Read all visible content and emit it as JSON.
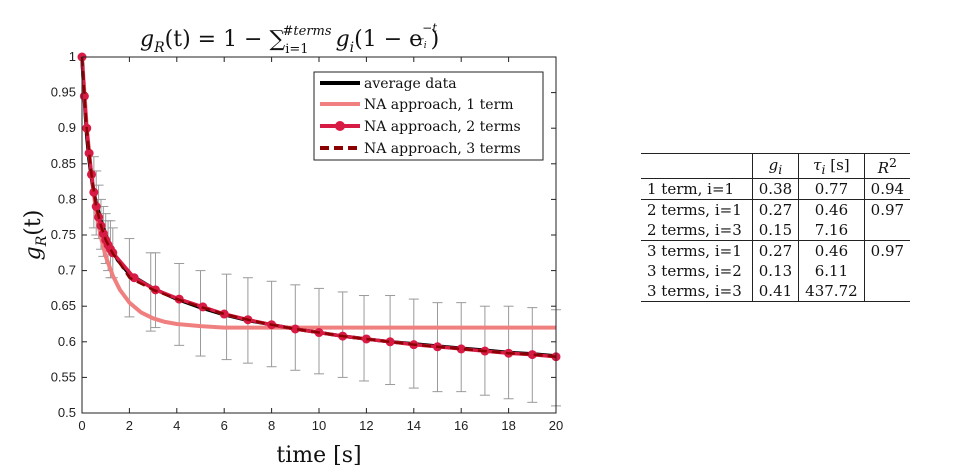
{
  "chart_data": {
    "type": "line",
    "title": {
      "lhs": "g",
      "lhs_sub": "R",
      "lhs_arg": "(t) = 1 − ",
      "sum": "∑",
      "sum_sub": "i=1",
      "sum_sup": "#terms",
      "term": "g",
      "term_sub": "i",
      "term_rest": "(1 − e",
      "exp_num": "−t",
      "exp_den": "τ",
      "exp_den_sub": "i",
      "close": ")"
    },
    "xlabel": "time [s]",
    "ylabel": "g",
    "ylabel_sub": "R",
    "ylabel_arg": "(t)",
    "xlim": [
      0,
      20
    ],
    "ylim": [
      0.5,
      1.0
    ],
    "xticks": [
      "0",
      "2",
      "4",
      "6",
      "8",
      "10",
      "12",
      "14",
      "16",
      "18",
      "20"
    ],
    "yticks": [
      "0.5",
      "0.55",
      "0.6",
      "0.65",
      "0.7",
      "0.75",
      "0.8",
      "0.85",
      "0.9",
      "0.95",
      "1"
    ],
    "legend_position": "top-right",
    "series": [
      {
        "name": "average data",
        "color": "#000000",
        "style": "solid",
        "x": [
          0,
          0.1,
          0.2,
          0.3,
          0.4,
          0.5,
          0.6,
          0.8,
          1.0,
          1.2,
          1.5,
          2.0,
          2.5,
          3.0,
          4.0,
          5.0,
          6.0,
          7.0,
          8.0,
          9.0,
          10.0,
          11.0,
          12.0,
          13.0,
          14.0,
          15.0,
          16.0,
          17.0,
          18.0,
          19.0,
          20.0
        ],
        "y": [
          1.0,
          0.94,
          0.89,
          0.855,
          0.83,
          0.81,
          0.795,
          0.77,
          0.75,
          0.735,
          0.715,
          0.695,
          0.685,
          0.675,
          0.66,
          0.648,
          0.638,
          0.63,
          0.624,
          0.618,
          0.613,
          0.608,
          0.604,
          0.6,
          0.597,
          0.594,
          0.591,
          0.588,
          0.585,
          0.583,
          0.58
        ]
      },
      {
        "name": "NA approach, 1 term",
        "color": "#f08080",
        "style": "solid",
        "x": [
          0,
          0.2,
          0.4,
          0.6,
          0.8,
          1.0,
          1.3,
          1.6,
          2.0,
          2.5,
          3.0,
          3.5,
          4.0,
          5.0,
          6.0,
          8.0,
          10.0,
          12.0,
          14.0,
          16.0,
          18.0,
          20.0
        ],
        "y": [
          1.0,
          0.902,
          0.832,
          0.782,
          0.746,
          0.72,
          0.693,
          0.673,
          0.655,
          0.641,
          0.633,
          0.628,
          0.625,
          0.622,
          0.62,
          0.62,
          0.62,
          0.62,
          0.62,
          0.62,
          0.62,
          0.62
        ]
      },
      {
        "name": "NA approach, 2 terms",
        "color": "#d81b45",
        "style": "solid-marker",
        "x": [
          0,
          0.1,
          0.2,
          0.3,
          0.4,
          0.5,
          0.6,
          0.7,
          0.8,
          0.9,
          1.0,
          1.1,
          1.2,
          1.3,
          2.2,
          3.1,
          4.1,
          5.1,
          6.0,
          7.0,
          8.0,
          9.0,
          10.0,
          11.0,
          12.0,
          13.0,
          14.0,
          15.0,
          16.0,
          17.0,
          18.0,
          19.0,
          20.0
        ],
        "y": [
          1.0,
          0.945,
          0.9,
          0.865,
          0.835,
          0.81,
          0.79,
          0.775,
          0.763,
          0.752,
          0.743,
          0.736,
          0.73,
          0.725,
          0.69,
          0.673,
          0.66,
          0.649,
          0.639,
          0.631,
          0.624,
          0.618,
          0.613,
          0.608,
          0.604,
          0.6,
          0.596,
          0.593,
          0.59,
          0.587,
          0.584,
          0.582,
          0.579
        ]
      },
      {
        "name": "NA approach, 3 terms",
        "color": "#8b0000",
        "style": "dashed",
        "x": [
          0,
          0.2,
          0.4,
          0.6,
          0.8,
          1.0,
          1.3,
          1.6,
          2.0,
          3.0,
          4.0,
          5.0,
          6.0,
          7.0,
          8.0,
          9.0,
          10.0,
          11.0,
          12.0,
          13.0,
          14.0,
          15.0,
          16.0,
          17.0,
          18.0,
          19.0,
          20.0
        ],
        "y": [
          1.0,
          0.9,
          0.835,
          0.79,
          0.763,
          0.743,
          0.724,
          0.71,
          0.69,
          0.673,
          0.66,
          0.649,
          0.639,
          0.631,
          0.624,
          0.618,
          0.613,
          0.608,
          0.604,
          0.6,
          0.596,
          0.593,
          0.59,
          0.587,
          0.584,
          0.582,
          0.579
        ]
      }
    ],
    "error_bars": {
      "color": "#9a9a9a",
      "x": [
        0.5,
        0.6,
        0.7,
        0.8,
        0.9,
        1.0,
        1.1,
        1.2,
        1.3,
        2.0,
        2.9,
        3.1,
        4.1,
        5.0,
        6.1,
        7.0,
        8.0,
        9.0,
        10.0,
        11.0,
        11.9,
        13.0,
        14.0,
        15.0,
        16.0,
        17.0,
        18.0,
        19.0,
        20.0
      ],
      "lower": [
        0.76,
        0.75,
        0.745,
        0.73,
        0.72,
        0.71,
        0.7,
        0.69,
        0.69,
        0.635,
        0.615,
        0.62,
        0.595,
        0.58,
        0.575,
        0.57,
        0.565,
        0.56,
        0.555,
        0.55,
        0.545,
        0.54,
        0.535,
        0.53,
        0.53,
        0.525,
        0.52,
        0.515,
        0.51
      ],
      "upper": [
        0.86,
        0.84,
        0.82,
        0.8,
        0.79,
        0.78,
        0.77,
        0.77,
        0.76,
        0.745,
        0.725,
        0.725,
        0.71,
        0.7,
        0.695,
        0.69,
        0.685,
        0.68,
        0.675,
        0.67,
        0.665,
        0.665,
        0.66,
        0.655,
        0.655,
        0.65,
        0.65,
        0.648,
        0.645
      ]
    }
  },
  "table": {
    "headers": {
      "blank": "",
      "g_base": "g",
      "g_sub": "i",
      "tau_base": "τ",
      "tau_sub": "i",
      "tau_unit": " [s]",
      "r_base": "R",
      "r_sup": "2"
    },
    "rows": [
      {
        "label": "1 term, i=1",
        "g": "0.38",
        "tau": "0.77",
        "r2": "0.94"
      },
      {
        "label": "2 terms, i=1",
        "g": "0.27",
        "tau": "0.46",
        "r2": "0.97"
      },
      {
        "label": "2 terms, i=3",
        "g": "0.15",
        "tau": "7.16",
        "r2": ""
      },
      {
        "label": "3 terms, i=1",
        "g": "0.27",
        "tau": "0.46",
        "r2": "0.97"
      },
      {
        "label": "3 terms, i=2",
        "g": "0.13",
        "tau": "6.11",
        "r2": ""
      },
      {
        "label": "3 terms, i=3",
        "g": "0.41",
        "tau": "437.72",
        "r2": ""
      }
    ]
  }
}
